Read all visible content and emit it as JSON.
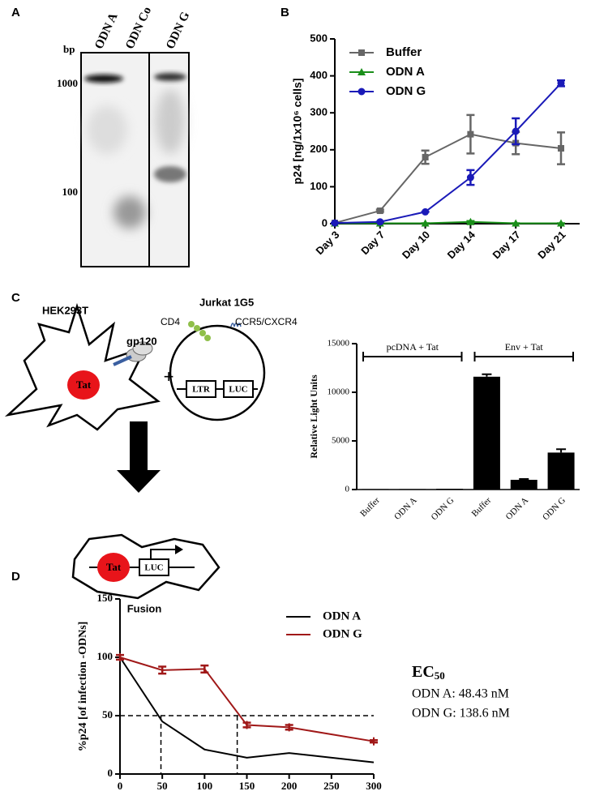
{
  "panels": [
    "A",
    "B",
    "C",
    "D"
  ],
  "gel": {
    "lanes": [
      "ODN A",
      "ODN Co",
      "ODN G"
    ],
    "unit": "bp",
    "markers": [
      "1000",
      "100"
    ]
  },
  "diagram": {
    "cell1": "HEK293T",
    "gp120": "gp120",
    "tat1": "Tat",
    "plus": "+",
    "cell2": "Jurkat 1G5",
    "cd4": "CD4",
    "receptors": "CCR5/CXCR4",
    "ltr": "LTR",
    "luc1": "LUC",
    "tat2": "Tat",
    "luc2": "LUC",
    "fusion": "Fusion"
  },
  "chart_data": [
    {
      "type": "line",
      "ylabel": "p24 [ng/1x10⁶ cells]",
      "categories": [
        "Day 3",
        "Day 7",
        "Day 10",
        "Day 14",
        "Day 17",
        "Day 21"
      ],
      "ylim": [
        0,
        500
      ],
      "yticks": [
        0,
        100,
        200,
        300,
        400,
        500
      ],
      "legend": "upper left",
      "series": [
        {
          "name": "Buffer",
          "color": "#666666",
          "marker": "square",
          "values": [
            2,
            35,
            180,
            242,
            218,
            204
          ],
          "errors": [
            0,
            3,
            18,
            52,
            30,
            43
          ]
        },
        {
          "name": "ODN A",
          "color": "#1a8f1a",
          "marker": "triangle",
          "values": [
            1,
            1,
            1,
            5,
            1,
            1
          ],
          "errors": [
            0,
            0,
            0,
            2,
            0,
            0
          ]
        },
        {
          "name": "ODN G",
          "color": "#1a1ab8",
          "marker": "circle",
          "values": [
            2,
            5,
            32,
            125,
            250,
            380
          ],
          "errors": [
            0,
            0,
            0,
            20,
            35,
            8
          ]
        }
      ]
    },
    {
      "type": "bar",
      "ylabel": "Relative Light Units",
      "categories": [
        "Buffer",
        "ODN A",
        "ODN G",
        "Buffer",
        "ODN A",
        "ODN G"
      ],
      "values": [
        50,
        50,
        80,
        11600,
        1000,
        3800
      ],
      "errors": [
        0,
        0,
        0,
        250,
        80,
        350
      ],
      "color": "#000000",
      "ylim": [
        0,
        15000
      ],
      "yticks": [
        0,
        5000,
        10000,
        15000
      ],
      "groups": [
        "pcDNA + Tat",
        "Env + Tat"
      ]
    },
    {
      "type": "line",
      "ylabel": "%p24 [of infection -ODNs]",
      "xlim": [
        0,
        300
      ],
      "xticks": [
        0,
        50,
        100,
        150,
        200,
        250,
        300
      ],
      "ylim": [
        0,
        150
      ],
      "yticks": [
        0,
        50,
        100,
        150
      ],
      "legend": "upper right",
      "series": [
        {
          "name": "ODN A",
          "color": "#000000",
          "marker": "none",
          "x": [
            0,
            50,
            100,
            150,
            200,
            300
          ],
          "values": [
            100,
            45,
            21,
            14,
            18,
            10
          ]
        },
        {
          "name": "ODN G",
          "color": "#a01818",
          "marker": "tick",
          "x": [
            0,
            50,
            100,
            150,
            200,
            300
          ],
          "values": [
            100,
            89,
            90,
            42,
            40,
            28
          ],
          "errors": [
            2,
            3,
            3,
            2,
            2,
            1
          ]
        }
      ],
      "reference_y": 50,
      "reference_x": [
        48.43,
        138.6
      ],
      "annotation": {
        "title": "EC",
        "title_sub": "50",
        "lines": [
          "ODN A: 48.43 nM",
          "ODN G: 138.6 nM"
        ]
      }
    }
  ]
}
